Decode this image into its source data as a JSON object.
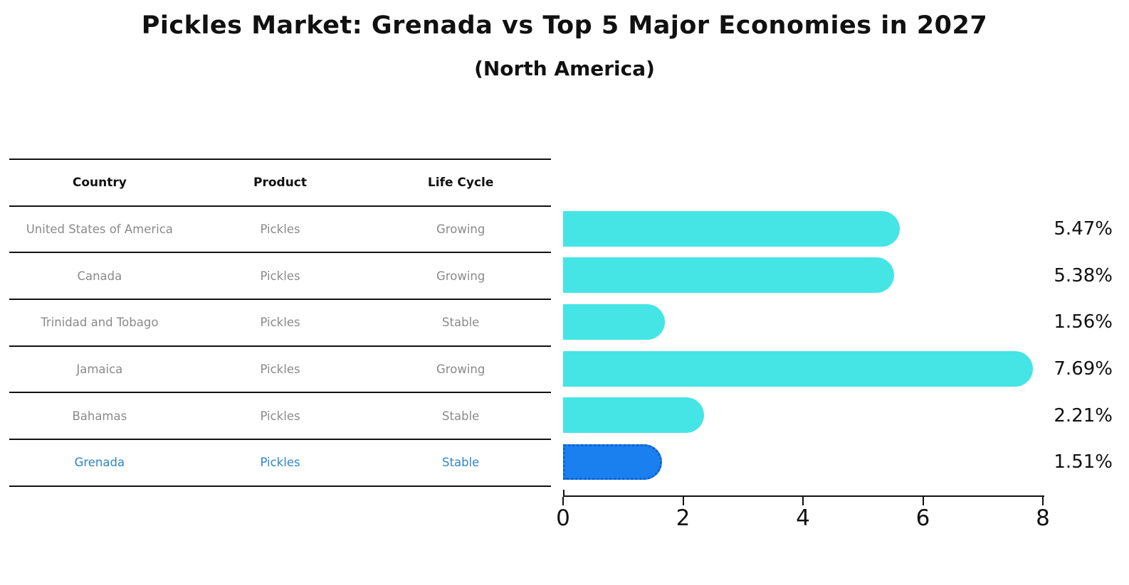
{
  "title": "Pickles Market: Grenada vs Top 5 Major Economies in 2027",
  "subtitle": "(North America)",
  "table": {
    "headers": [
      "Country",
      "Product",
      "Life Cycle"
    ],
    "rows": [
      {
        "country": "United States of America",
        "product": "Pickles",
        "life_cycle": "Growing"
      },
      {
        "country": "Canada",
        "product": "Pickles",
        "life_cycle": "Growing"
      },
      {
        "country": "Trinidad and Tobago",
        "product": "Pickles",
        "life_cycle": "Stable"
      },
      {
        "country": "Jamaica",
        "product": "Pickles",
        "life_cycle": "Growing"
      },
      {
        "country": "Bahamas",
        "product": "Pickles",
        "life_cycle": "Stable"
      },
      {
        "country": "Grenada",
        "product": "Pickles",
        "life_cycle": "Stable"
      }
    ]
  },
  "chart_data": {
    "type": "bar",
    "orientation": "horizontal",
    "title": "Pickles Market: Grenada vs Top 5 Major Economies in 2027 (North America)",
    "categories": [
      "United States of America",
      "Canada",
      "Trinidad and Tobago",
      "Jamaica",
      "Bahamas",
      "Grenada"
    ],
    "values": [
      5.47,
      5.38,
      1.56,
      7.69,
      2.21,
      1.51
    ],
    "value_labels": [
      "5.47%",
      "5.38%",
      "1.56%",
      "7.69%",
      "2.21%",
      "1.51%"
    ],
    "unit": "%",
    "xlim": [
      0,
      8
    ],
    "x_ticks": [
      "0",
      "2",
      "4",
      "6",
      "8"
    ],
    "grid": false,
    "legend": "none",
    "bar_color": "#45e5e6",
    "highlight_color": "#1a80f0",
    "highlight_index": 5,
    "highlight_category": "Grenada"
  },
  "colors": {
    "bar": "#45e5e6",
    "highlight_bar": "#1a80f0",
    "highlight_border": "#1260c8",
    "highlight_text": "#2e86c9",
    "row_text": "#8a8a8a",
    "axis": "#111111"
  }
}
